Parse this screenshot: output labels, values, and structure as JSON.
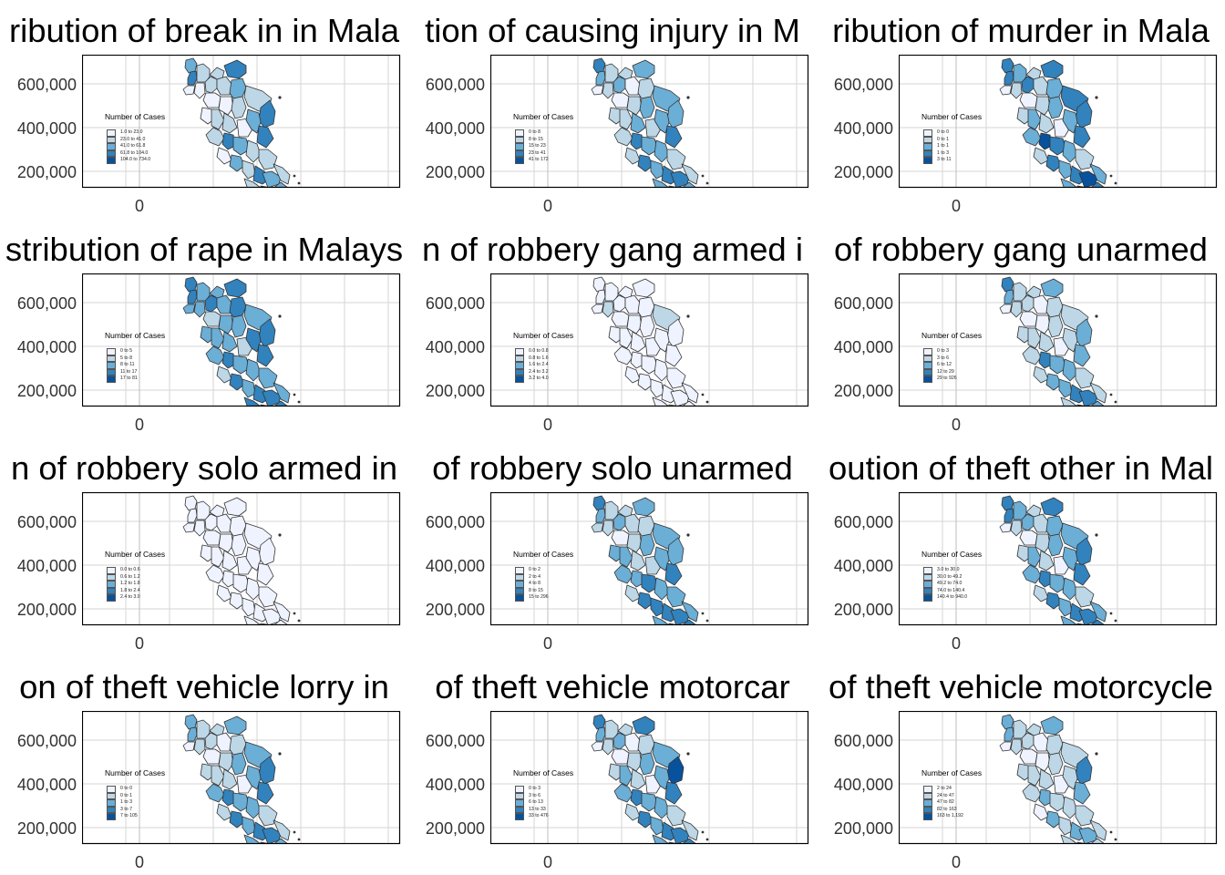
{
  "axis": {
    "y_ticks": [
      "600,000",
      "400,000",
      "200,000"
    ],
    "x_tick": "0"
  },
  "legend_title": "Number of Cases",
  "palette": [
    "#eff3ff",
    "#bdd7e7",
    "#6baed6",
    "#3182bd",
    "#08519c"
  ],
  "panels": [
    {
      "title": "ribution of break in in Mala",
      "legend": [
        "1.0 to 23.0",
        "23.0 to 41.0",
        "41.0 to 61.8",
        "61.8 to 104.0",
        "104.0 to 734.0"
      ],
      "fills": [
        2,
        3,
        1,
        0,
        0,
        1,
        1,
        3,
        1,
        2,
        0,
        0,
        1,
        1,
        3,
        0,
        1,
        1,
        0,
        2,
        3,
        1,
        3,
        2,
        1,
        1,
        0,
        2,
        1,
        3,
        2,
        1,
        1,
        4,
        2,
        1
      ]
    },
    {
      "title": "tion of causing injury in M",
      "legend": [
        "0 to 8",
        "8 to 15",
        "15 to 23",
        "23 to 41",
        "41 to 172"
      ],
      "fills": [
        3,
        2,
        1,
        1,
        0,
        2,
        1,
        2,
        0,
        1,
        0,
        1,
        2,
        2,
        2,
        1,
        1,
        2,
        1,
        2,
        3,
        1,
        3,
        2,
        2,
        1,
        1,
        3,
        2,
        3,
        3,
        1,
        2,
        3,
        2,
        1
      ]
    },
    {
      "title": "ribution of murder in Mala",
      "legend": [
        "0 to 0",
        "0 to 1",
        "1 to 1",
        "1 to 3",
        "3 to 11"
      ],
      "fills": [
        3,
        3,
        2,
        1,
        0,
        3,
        1,
        3,
        1,
        2,
        0,
        1,
        2,
        3,
        3,
        1,
        2,
        1,
        0,
        2,
        3,
        2,
        4,
        3,
        2,
        1,
        1,
        3,
        2,
        3,
        4,
        2,
        2,
        4,
        3,
        1
      ]
    },
    {
      "title": "stribution of rape in Malays",
      "legend": [
        "0 to 5",
        "5 to 8",
        "8 to 11",
        "11 to 17",
        "17 to 81"
      ],
      "fills": [
        3,
        3,
        2,
        2,
        2,
        3,
        2,
        3,
        2,
        3,
        1,
        2,
        2,
        2,
        3,
        2,
        2,
        2,
        1,
        3,
        3,
        2,
        3,
        2,
        2,
        2,
        1,
        3,
        2,
        3,
        3,
        2,
        3,
        3,
        3,
        3
      ]
    },
    {
      "title": "n of robbery gang armed i",
      "legend": [
        "0.0 to 0.8",
        "0.8 to 1.6",
        "1.6 to 2.4",
        "2.4 to 3.2",
        "3.2 to 4.0"
      ],
      "fills": [
        0,
        0,
        0,
        1,
        0,
        0,
        0,
        0,
        0,
        0,
        0,
        0,
        0,
        1,
        0,
        0,
        0,
        0,
        0,
        0,
        0,
        0,
        0,
        0,
        0,
        0,
        0,
        0,
        0,
        0,
        0,
        0,
        0,
        0,
        0,
        0
      ]
    },
    {
      "title": "of robbery gang unarmed",
      "legend": [
        "0 to 3",
        "3 to 6",
        "6 to 12",
        "12 to 29",
        "29 to 926"
      ],
      "fills": [
        3,
        2,
        1,
        1,
        0,
        1,
        1,
        2,
        0,
        1,
        0,
        0,
        1,
        1,
        2,
        1,
        1,
        1,
        0,
        1,
        2,
        1,
        3,
        2,
        2,
        1,
        1,
        2,
        2,
        3,
        3,
        1,
        1,
        3,
        2,
        1
      ]
    },
    {
      "title": "n of robbery solo armed in",
      "legend": [
        "0.0 to 0.6",
        "0.6 to 1.2",
        "1.2 to 1.8",
        "1.8 to 2.4",
        "2.4 to 3.0"
      ],
      "fills": [
        0,
        0,
        0,
        0,
        0,
        0,
        0,
        0,
        0,
        0,
        0,
        0,
        0,
        0,
        0,
        0,
        0,
        0,
        0,
        0,
        0,
        0,
        0,
        0,
        0,
        0,
        0,
        0,
        0,
        0,
        0,
        0,
        0,
        0,
        0,
        0
      ]
    },
    {
      "title": "of robbery solo unarmed",
      "legend": [
        "0 to 2",
        "2 to 4",
        "4 to 8",
        "8 to 15",
        "15 to 296"
      ],
      "fills": [
        3,
        2,
        1,
        1,
        1,
        2,
        1,
        2,
        1,
        1,
        0,
        1,
        2,
        2,
        2,
        2,
        2,
        1,
        1,
        2,
        3,
        2,
        2,
        3,
        2,
        2,
        1,
        3,
        3,
        3,
        3,
        2,
        2,
        4,
        3,
        2
      ]
    },
    {
      "title": "oution of theft other in Mal",
      "legend": [
        "3.0 to 30.0",
        "30.0 to 49.2",
        "49.2 to 74.0",
        "74.0 to 140.4",
        "140.4 to 940.0"
      ],
      "fills": [
        3,
        3,
        2,
        1,
        0,
        2,
        1,
        3,
        1,
        2,
        0,
        1,
        2,
        2,
        3,
        1,
        2,
        1,
        0,
        2,
        3,
        2,
        3,
        2,
        2,
        1,
        1,
        3,
        2,
        3,
        3,
        2,
        2,
        3,
        3,
        1
      ]
    },
    {
      "title": "on of theft vehicle lorry in",
      "legend": [
        "0 to 0",
        "0 to 1",
        "1 to 3",
        "3 to 7",
        "7 to 105"
      ],
      "fills": [
        2,
        2,
        1,
        1,
        0,
        1,
        1,
        2,
        0,
        1,
        0,
        1,
        2,
        2,
        3,
        1,
        1,
        1,
        0,
        2,
        3,
        2,
        3,
        2,
        2,
        1,
        1,
        3,
        2,
        3,
        3,
        1,
        2,
        4,
        2,
        1
      ]
    },
    {
      "title": "of theft vehicle motorcar",
      "legend": [
        "0 to 3",
        "3 to 6",
        "6 to 13",
        "13 to 33",
        "33 to 476"
      ],
      "fills": [
        3,
        2,
        1,
        1,
        0,
        2,
        1,
        3,
        0,
        1,
        0,
        1,
        2,
        2,
        4,
        1,
        2,
        1,
        0,
        2,
        3,
        2,
        3,
        2,
        2,
        1,
        1,
        3,
        2,
        3,
        3,
        1,
        2,
        3,
        3,
        1
      ]
    },
    {
      "title": "of theft vehicle motorcycle",
      "legend": [
        "2 to 24",
        "24 to 47",
        "47 to 82",
        "82 to 163",
        "163 to 1,192"
      ],
      "fills": [
        2,
        2,
        1,
        1,
        0,
        1,
        1,
        2,
        0,
        1,
        0,
        0,
        1,
        1,
        3,
        1,
        1,
        1,
        0,
        1,
        2,
        1,
        2,
        1,
        1,
        1,
        0,
        2,
        1,
        2,
        2,
        1,
        1,
        3,
        1,
        0
      ]
    }
  ]
}
